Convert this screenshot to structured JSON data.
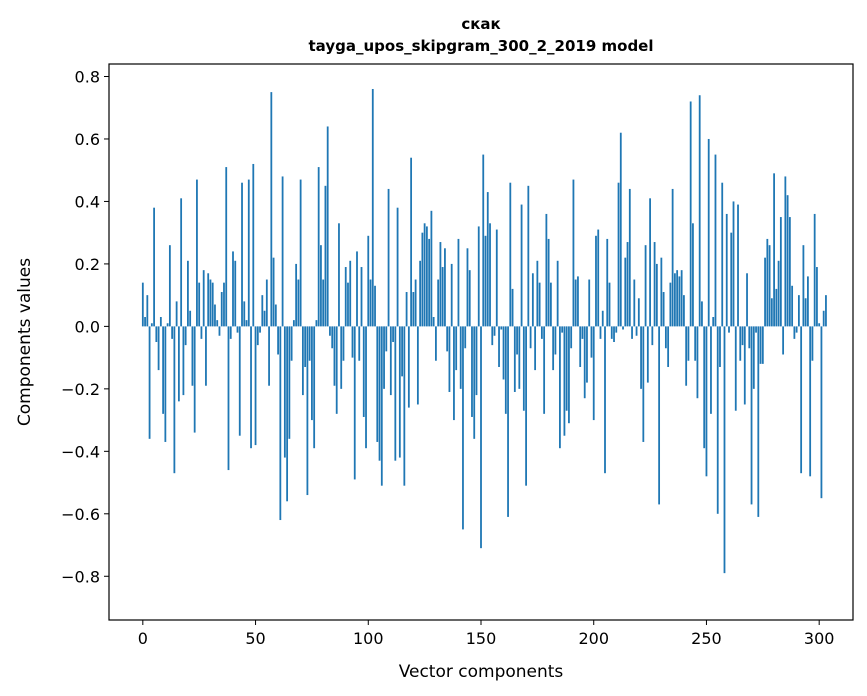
{
  "chart_data": {
    "type": "bar",
    "title": "скак",
    "subtitle": "tayga_upos_skipgram_300_2_2019 model",
    "xlabel": "Vector components",
    "ylabel": "Components values",
    "xlim": [
      -15,
      315
    ],
    "ylim": [
      -0.94,
      0.84
    ],
    "xticks": [
      0,
      50,
      100,
      150,
      200,
      250,
      300
    ],
    "xtick_labels": [
      "0",
      "50",
      "100",
      "150",
      "200",
      "250",
      "300"
    ],
    "yticks": [
      -0.8,
      -0.6,
      -0.4,
      -0.2,
      0.0,
      0.2,
      0.4,
      0.6,
      0.8
    ],
    "ytick_labels": [
      "−0.8",
      "−0.6",
      "−0.4",
      "−0.2",
      "0.0",
      "0.2",
      "0.4",
      "0.6",
      "0.8"
    ],
    "bar_color": "#1f77b4",
    "values": [
      0.14,
      0.03,
      0.1,
      -0.36,
      0.01,
      0.38,
      -0.05,
      -0.14,
      0.03,
      -0.28,
      -0.37,
      0.01,
      0.26,
      -0.04,
      -0.47,
      0.08,
      -0.24,
      0.41,
      -0.22,
      -0.06,
      0.21,
      0.05,
      -0.19,
      -0.34,
      0.47,
      0.14,
      -0.04,
      0.18,
      -0.19,
      0.17,
      0.15,
      0.14,
      0.07,
      0.02,
      -0.03,
      0.11,
      0.14,
      0.51,
      -0.46,
      -0.04,
      0.24,
      0.21,
      -0.02,
      -0.35,
      0.46,
      0.08,
      0.02,
      0.47,
      -0.39,
      0.52,
      -0.38,
      -0.06,
      -0.02,
      0.1,
      0.05,
      0.15,
      -0.19,
      0.75,
      0.22,
      0.07,
      -0.09,
      -0.62,
      0.48,
      -0.42,
      -0.56,
      -0.36,
      -0.11,
      0.02,
      0.2,
      0.15,
      0.47,
      -0.22,
      -0.13,
      -0.54,
      -0.11,
      -0.3,
      -0.39,
      0.02,
      0.51,
      0.26,
      0.15,
      0.45,
      0.64,
      -0.03,
      -0.07,
      -0.19,
      -0.28,
      0.33,
      -0.2,
      -0.11,
      0.19,
      0.14,
      0.21,
      -0.1,
      -0.49,
      0.24,
      -0.11,
      0.19,
      -0.29,
      -0.39,
      0.29,
      0.15,
      0.76,
      0.13,
      -0.37,
      -0.43,
      -0.51,
      -0.2,
      -0.08,
      0.44,
      -0.22,
      -0.05,
      -0.43,
      0.38,
      -0.42,
      -0.16,
      -0.51,
      0.11,
      -0.26,
      0.54,
      0.11,
      0.15,
      -0.25,
      0.21,
      0.3,
      0.33,
      0.32,
      0.28,
      0.37,
      0.03,
      -0.11,
      0.15,
      0.27,
      0.19,
      0.25,
      -0.08,
      -0.21,
      0.2,
      -0.3,
      -0.14,
      0.28,
      -0.2,
      -0.65,
      -0.07,
      0.25,
      0.18,
      -0.29,
      -0.36,
      -0.22,
      0.32,
      -0.71,
      0.55,
      0.29,
      0.43,
      0.33,
      -0.06,
      -0.03,
      0.31,
      -0.13,
      -0.01,
      -0.17,
      -0.28,
      -0.61,
      0.46,
      0.12,
      -0.21,
      -0.09,
      -0.2,
      0.39,
      -0.27,
      -0.51,
      0.45,
      -0.07,
      0.17,
      -0.14,
      0.21,
      0.14,
      -0.04,
      -0.28,
      0.36,
      0.28,
      0.14,
      -0.14,
      -0.09,
      0.21,
      -0.39,
      -0.02,
      -0.35,
      -0.27,
      -0.31,
      -0.07,
      0.47,
      0.15,
      0.16,
      -0.13,
      -0.04,
      -0.23,
      -0.18,
      0.15,
      -0.1,
      -0.3,
      0.29,
      0.31,
      -0.04,
      0.05,
      -0.47,
      0.28,
      0.14,
      -0.04,
      -0.05,
      -0.02,
      0.46,
      0.62,
      -0.01,
      0.22,
      0.27,
      0.44,
      -0.04,
      0.15,
      -0.03,
      0.09,
      -0.2,
      -0.37,
      0.26,
      -0.18,
      0.41,
      -0.06,
      0.27,
      0.2,
      -0.57,
      0.22,
      0.11,
      -0.07,
      -0.13,
      0.14,
      0.44,
      0.17,
      0.18,
      0.16,
      0.18,
      0.1,
      -0.19,
      -0.11,
      0.72,
      0.33,
      -0.11,
      -0.23,
      0.74,
      0.08,
      -0.39,
      -0.48,
      0.6,
      -0.28,
      0.03,
      0.55,
      -0.6,
      -0.13,
      0.46,
      -0.79,
      0.36,
      -0.02,
      0.3,
      0.4,
      -0.27,
      0.39,
      -0.11,
      -0.06,
      -0.25,
      0.17,
      -0.07,
      -0.57,
      -0.2,
      -0.02,
      -0.61,
      -0.12,
      -0.12,
      0.22,
      0.28,
      0.26,
      0.09,
      0.49,
      0.12,
      0.21,
      0.35,
      -0.09,
      0.48,
      0.42,
      0.35,
      0.13,
      -0.04,
      -0.02,
      0.1,
      -0.47,
      0.26,
      0.09,
      0.16,
      -0.48,
      -0.11,
      0.36,
      0.19,
      0.01,
      -0.55,
      0.05,
      0.1
    ]
  }
}
